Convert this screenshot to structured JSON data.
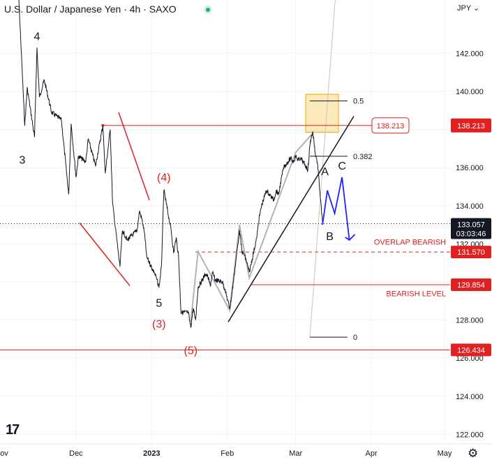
{
  "header": {
    "title": "U.S. Dollar / Japanese Yen · 4h · SAXO",
    "currency": "JPY",
    "currency_caret": "⌄"
  },
  "chart_data": {
    "type": "line",
    "title": "U.S. Dollar / Japanese Yen · 4h · SAXO",
    "price_axis": {
      "ticks": [
        "142.000",
        "140.000",
        "138.000",
        "136.000",
        "134.000",
        "132.000",
        "130.000",
        "128.000",
        "126.000",
        "124.000",
        "122.000"
      ],
      "tick_values": [
        142,
        140,
        138,
        136,
        134,
        132,
        130,
        128,
        126,
        124,
        122
      ],
      "range": [
        121.5,
        144.8
      ]
    },
    "time_axis": {
      "ticks": [
        "ov",
        "Dec",
        "2023",
        "Feb",
        "Mar",
        "Apr",
        "May"
      ],
      "bold_ticks": [
        "2023"
      ]
    },
    "series": [
      {
        "values": [
          [
            "Nov 7",
            146.4
          ],
          [
            "Nov 10",
            138.2
          ],
          [
            "Nov 11",
            140.2
          ],
          [
            "Nov 14",
            137.6
          ],
          [
            "Nov 15",
            142.3
          ],
          [
            "Nov 16",
            139.7
          ],
          [
            "Nov 18",
            140.6
          ],
          [
            "Nov 21",
            138.9
          ],
          [
            "Nov 25",
            138.5
          ],
          [
            "Nov 28",
            134.6
          ],
          [
            "Nov 29",
            138.3
          ],
          [
            "Dec 1",
            135.5
          ],
          [
            "Dec 2",
            136.6
          ],
          [
            "Dec 5",
            136.3
          ],
          [
            "Dec 6",
            137.5
          ],
          [
            "Dec 9",
            136.1
          ],
          [
            "Dec 12",
            138.2
          ],
          [
            "Dec 13",
            135.7
          ],
          [
            "Dec 15",
            138.0
          ],
          [
            "Dec 16",
            134.1
          ],
          [
            "Dec 19",
            130.8
          ],
          [
            "Dec 20",
            132.7
          ],
          [
            "Dec 22",
            132.2
          ],
          [
            "Dec 26",
            132.7
          ],
          [
            "Dec 27",
            133.7
          ],
          [
            "Dec 28",
            133.3
          ],
          [
            "Dec 29",
            132.6
          ],
          [
            "Dec 30",
            131.3
          ],
          [
            "Jan 2",
            130.5
          ],
          [
            "Jan 3",
            130.2
          ],
          [
            "Jan 4",
            129.7
          ],
          [
            "Jan 5",
            130.8
          ],
          [
            "Jan 6",
            134.8
          ],
          [
            "Jan 9",
            132.7
          ],
          [
            "Jan 10",
            131.5
          ],
          [
            "Jan 11",
            132.3
          ],
          [
            "Jan 12",
            131.4
          ],
          [
            "Jan 13",
            128.4
          ],
          [
            "Jan 16",
            128.4
          ],
          [
            "Jan 17",
            127.6
          ],
          [
            "Jan 18",
            128.6
          ],
          [
            "Jan 19",
            128.0
          ],
          [
            "Jan 20",
            129.7
          ],
          [
            "Jan 23",
            130.4
          ],
          [
            "Jan 24",
            130.3
          ],
          [
            "Jan 25",
            129.8
          ],
          [
            "Jan 26",
            130.5
          ],
          [
            "Jan 27",
            130.1
          ],
          [
            "Jan 30",
            130.0
          ],
          [
            "Jan 31",
            129.6
          ],
          [
            "Feb 2",
            128.6
          ],
          [
            "Feb 3",
            129.5
          ],
          [
            "Feb 6",
            132.7
          ],
          [
            "Feb 7",
            131.6
          ],
          [
            "Feb 8",
            131.4
          ],
          [
            "Feb 9",
            131.0
          ],
          [
            "Feb 10",
            130.5
          ],
          [
            "Feb 13",
            132.3
          ],
          [
            "Feb 14",
            133.3
          ],
          [
            "Feb 15",
            134.0
          ],
          [
            "Feb 17",
            134.8
          ],
          [
            "Feb 20",
            134.3
          ],
          [
            "Feb 21",
            134.8
          ],
          [
            "Feb 22",
            134.6
          ],
          [
            "Feb 24",
            136.0
          ],
          [
            "Feb 27",
            136.5
          ],
          [
            "Feb 28",
            136.3
          ],
          [
            "Mar 1",
            136.6
          ],
          [
            "Mar 2",
            136.4
          ],
          [
            "Mar 3",
            136.5
          ],
          [
            "Mar 6",
            135.9
          ],
          [
            "Mar 7",
            137.4
          ],
          [
            "Mar 8",
            137.9
          ],
          [
            "Mar 9",
            136.8
          ],
          [
            "Mar 10",
            136.2
          ],
          [
            "Mar 11",
            134.6
          ],
          [
            "Mar 12",
            133.1
          ]
        ]
      }
    ],
    "levels": [
      {
        "label": "138.213",
        "value": 138.213
      },
      {
        "label": "131.570",
        "value": 131.57
      },
      {
        "label": "129.854",
        "value": 129.854
      },
      {
        "label": "126.434",
        "value": 126.434
      }
    ],
    "current_price": {
      "label": "133.057",
      "countdown": "03:03:46",
      "value": 133.057
    },
    "fib_levels": [
      {
        "label": "0.5",
        "value": 139.5
      },
      {
        "label": "0.382",
        "value": 136.6
      },
      {
        "label": "0",
        "value": 127.1
      }
    ],
    "wave_labels": [
      {
        "text": "4",
        "date": "Nov 15",
        "price": 142.7
      },
      {
        "text": "3",
        "date": "Nov 9",
        "price": 136.2
      },
      {
        "text": "(4)",
        "date": "Jan 6",
        "price": 135.3
      },
      {
        "text": "5",
        "date": "Jan 4",
        "price": 128.7
      },
      {
        "text": "(3)",
        "date": "Jan 4",
        "price": 127.6
      },
      {
        "text": "(5)",
        "date": "Jan 17",
        "price": 126.2
      },
      {
        "text": "A",
        "date": "Mar 13",
        "price": 135.6
      },
      {
        "text": "B",
        "date": "Mar 15",
        "price": 132.2
      },
      {
        "text": "C",
        "date": "Mar 20",
        "price": 135.9
      }
    ],
    "annotations": [
      {
        "text": "OVERLAP BEARISH",
        "price": 132.1
      },
      {
        "text": "BEARISH LEVEL",
        "price": 129.4
      }
    ],
    "projection": [
      [
        "Mar 12",
        133.0
      ],
      [
        "Mar 14",
        134.8
      ],
      [
        "Mar 17",
        133.6
      ],
      [
        "Mar 20",
        135.5
      ],
      [
        "Mar 23",
        132.2
      ]
    ],
    "colors": {
      "price": "#131722",
      "level": "#e02121",
      "projection": "#1e22ff",
      "fib_zone_fill": "#fde6b0",
      "fib_zone_border": "#f0a500",
      "grid": "#f0f3fa",
      "current_price_label": "#131722"
    },
    "grid": true
  },
  "footer": {
    "logo": "17"
  },
  "icons": {
    "settings": "gear-icon",
    "logo": "tradingview-logo-icon"
  }
}
